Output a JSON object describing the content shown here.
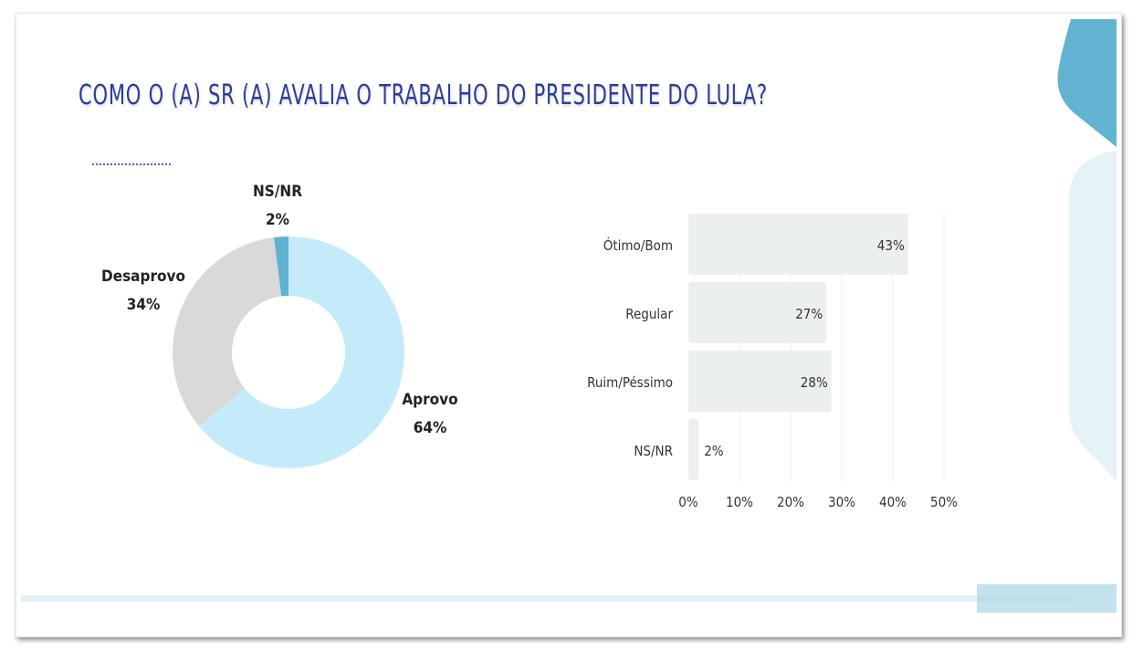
{
  "title": "COMO O (A) SR (A) AVALIA O TRABALHO DO PRESIDENTE DO LULA?",
  "chart_data": [
    {
      "type": "pie",
      "variant": "donut",
      "labels": [
        "Aprovo",
        "Desaprovo",
        "NS/NR"
      ],
      "values": [
        64,
        34,
        2
      ],
      "value_labels": [
        "64%",
        "34%",
        "2%"
      ],
      "colors": [
        "#c5ebfb",
        "#d9d9d9",
        "#5eb3d3"
      ]
    },
    {
      "type": "bar",
      "orientation": "horizontal",
      "categories": [
        "Ótimo/Bom",
        "Regular",
        "Ruim/Péssimo",
        "NS/NR"
      ],
      "values": [
        43,
        27,
        28,
        2
      ],
      "value_labels": [
        "43%",
        "27%",
        "28%",
        "2%"
      ],
      "xlim": [
        0,
        50
      ],
      "xticks": [
        "0%",
        "10%",
        "20%",
        "30%",
        "40%",
        "50%"
      ],
      "grid": true,
      "bar_color": "#eceff0"
    }
  ],
  "colors": {
    "title": "#2b3c9a",
    "accent": "#62b2d2",
    "accent_light": "#e5f3f7"
  }
}
